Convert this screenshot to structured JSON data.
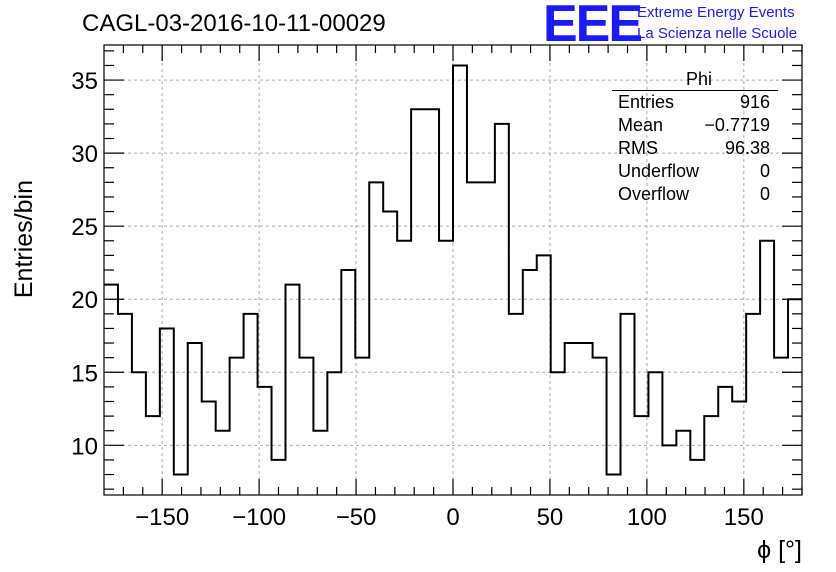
{
  "title": "CAGL-03-2016-10-11-00029",
  "logo": {
    "mark": "EEE",
    "line1": "Extreme Energy Events",
    "line2": "La Scienza nelle Scuole",
    "color": "#1a1aff"
  },
  "stats_box": {
    "name": "Phi",
    "rows": [
      {
        "label": "Entries",
        "value": "916"
      },
      {
        "label": "Mean",
        "value": "−0.7719"
      },
      {
        "label": "RMS",
        "value": "96.38"
      },
      {
        "label": "Underflow",
        "value": "0"
      },
      {
        "label": "Overflow",
        "value": "0"
      }
    ]
  },
  "chart_data": {
    "type": "histogram",
    "title": "CAGL-03-2016-10-11-00029",
    "xlabel": "ϕ [°]",
    "ylabel": "Entries/bin",
    "xlim": [
      -180,
      180
    ],
    "ylim": [
      6.6,
      37.4
    ],
    "bin_width": 7.2,
    "grid": true,
    "xticks": [
      -150,
      -100,
      -50,
      0,
      50,
      100,
      150
    ],
    "xtick_labels": [
      "−150",
      "−100",
      "−50",
      "0",
      "50",
      "100",
      "150"
    ],
    "yticks": [
      10,
      15,
      20,
      25,
      30,
      35
    ],
    "ytick_labels": [
      "10",
      "15",
      "20",
      "25",
      "30",
      "35"
    ],
    "values": [
      21,
      19,
      15,
      12,
      18,
      8,
      17,
      13,
      11,
      16,
      19,
      14,
      9,
      21,
      16,
      11,
      15,
      22,
      16,
      28,
      26,
      24,
      33,
      33,
      24,
      36,
      28,
      28,
      32,
      19,
      22,
      23,
      15,
      17,
      17,
      16,
      8,
      19,
      12,
      15,
      10,
      11,
      9,
      12,
      14,
      13,
      19,
      24,
      16,
      20
    ]
  }
}
